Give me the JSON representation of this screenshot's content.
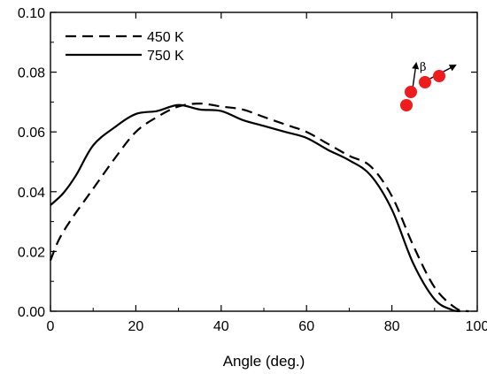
{
  "chart_data": {
    "type": "line",
    "title": "",
    "xlabel": "Angle (deg.)",
    "ylabel": "",
    "xlim": [
      0,
      100
    ],
    "ylim": [
      0,
      0.1
    ],
    "x_ticks": [
      0,
      20,
      40,
      60,
      80,
      100
    ],
    "x_tick_labels": [
      "0",
      "20",
      "40",
      "60",
      "80",
      "100"
    ],
    "y_ticks": [
      0,
      0.02,
      0.04,
      0.06,
      0.08,
      0.1
    ],
    "y_tick_labels": [
      "0.00",
      "0.02",
      "0.04",
      "0.06",
      "0.08",
      "0.10"
    ],
    "grid": false,
    "legend_position": "top-left",
    "series": [
      {
        "name": "450 K",
        "line_style": "dashed",
        "color": "#000000",
        "x": [
          0,
          2,
          5,
          10,
          15,
          20,
          25,
          30,
          35,
          40,
          45,
          50,
          55,
          60,
          65,
          70,
          75,
          80,
          85,
          90,
          95,
          98
        ],
        "y": [
          0.017,
          0.024,
          0.031,
          0.041,
          0.051,
          0.06,
          0.065,
          0.0685,
          0.0695,
          0.0685,
          0.0675,
          0.065,
          0.0625,
          0.06,
          0.056,
          0.052,
          0.0485,
          0.0385,
          0.022,
          0.008,
          0.001,
          0.0
        ]
      },
      {
        "name": "750 K",
        "line_style": "solid",
        "color": "#000000",
        "x": [
          0,
          3,
          6,
          10,
          15,
          20,
          25,
          30,
          35,
          40,
          45,
          50,
          55,
          60,
          65,
          70,
          75,
          80,
          85,
          90,
          94,
          96
        ],
        "y": [
          0.0355,
          0.0395,
          0.0455,
          0.0555,
          0.0615,
          0.066,
          0.067,
          0.069,
          0.0675,
          0.067,
          0.064,
          0.062,
          0.06,
          0.058,
          0.054,
          0.0505,
          0.0455,
          0.034,
          0.016,
          0.004,
          0.0005,
          0.0
        ]
      }
    ],
    "inset": {
      "label": "β",
      "marker_color": "#ee1c1c"
    }
  }
}
